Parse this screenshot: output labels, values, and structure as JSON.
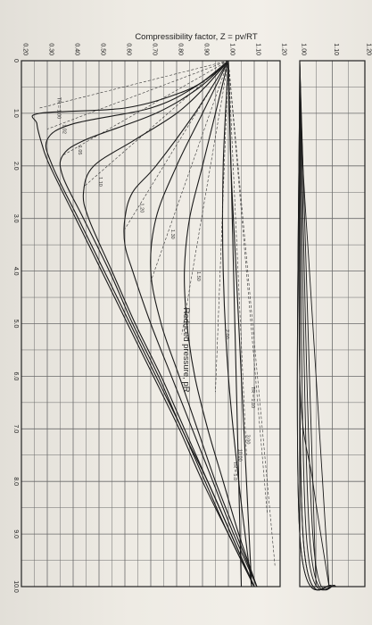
{
  "chart_data": {
    "type": "line",
    "title": "",
    "xlabel": "Reduced pressure, pR",
    "ylabel": "Compressibility factor, Z = pv/RT",
    "xlim": [
      0,
      10
    ],
    "ylim": [
      0.2,
      1.2
    ],
    "inset_ylim": [
      1.0,
      1.2
    ],
    "x_ticks": [
      "0",
      "1.0",
      "2.0",
      "3.0",
      "4.0",
      "5.0",
      "6.0",
      "7.0",
      "8.0",
      "9.0",
      "10.0"
    ],
    "y_ticks": [
      "0.20",
      "0.30",
      "0.40",
      "0.50",
      "0.60",
      "0.70",
      "0.80",
      "0.90",
      "1.00",
      "1.10",
      "1.20"
    ],
    "inset_y_ticks": [
      "1.00",
      "1.10",
      "1.20"
    ],
    "grid": true,
    "series": [
      {
        "name": "TR = 1.00",
        "x": [
          0,
          0.3,
          0.6,
          0.9,
          1.0,
          1.2,
          1.6,
          2.0,
          3.0,
          4.0,
          5.0,
          6.0,
          7.0,
          8.0,
          9.0,
          10.0
        ],
        "y": [
          1.0,
          0.93,
          0.82,
          0.6,
          0.27,
          0.26,
          0.28,
          0.31,
          0.41,
          0.51,
          0.61,
          0.71,
          0.81,
          0.9,
          1.0,
          1.1
        ]
      },
      {
        "name": "1.02",
        "x": [
          0,
          0.5,
          0.9,
          1.2,
          1.5,
          2.0,
          3.0,
          4.0,
          5.0,
          6.0,
          7.0,
          8.0,
          9.0,
          10.0
        ],
        "y": [
          1.0,
          0.87,
          0.7,
          0.4,
          0.3,
          0.32,
          0.42,
          0.52,
          0.62,
          0.72,
          0.82,
          0.91,
          1.0,
          1.1
        ]
      },
      {
        "name": "1.05",
        "x": [
          0,
          0.5,
          1.0,
          1.5,
          1.8,
          2.2,
          3.0,
          4.0,
          5.0,
          6.0,
          7.0,
          8.0,
          9.0,
          10.0
        ],
        "y": [
          1.0,
          0.89,
          0.72,
          0.45,
          0.36,
          0.36,
          0.44,
          0.54,
          0.63,
          0.73,
          0.82,
          0.92,
          1.01,
          1.1
        ]
      },
      {
        "name": "1.10",
        "x": [
          0,
          0.5,
          1.0,
          1.5,
          2.0,
          2.5,
          3.0,
          4.0,
          5.0,
          6.0,
          7.0,
          8.0,
          9.0,
          10.0
        ],
        "y": [
          1.0,
          0.91,
          0.8,
          0.64,
          0.48,
          0.44,
          0.46,
          0.55,
          0.64,
          0.74,
          0.83,
          0.92,
          1.01,
          1.1
        ]
      },
      {
        "name": "1.20",
        "x": [
          0,
          1.0,
          2.0,
          2.5,
          3.0,
          3.5,
          4.0,
          5.0,
          6.0,
          7.0,
          8.0,
          9.0,
          10.0
        ],
        "y": [
          1.0,
          0.87,
          0.72,
          0.63,
          0.6,
          0.6,
          0.63,
          0.7,
          0.78,
          0.86,
          0.94,
          1.02,
          1.11
        ]
      },
      {
        "name": "1.30",
        "x": [
          0,
          1.0,
          2.0,
          3.0,
          4.0,
          5.0,
          6.0,
          7.0,
          8.0,
          9.0,
          10.0
        ],
        "y": [
          1.0,
          0.9,
          0.8,
          0.72,
          0.7,
          0.74,
          0.81,
          0.88,
          0.95,
          1.03,
          1.11
        ]
      },
      {
        "name": "1.50",
        "x": [
          0,
          1.0,
          2.0,
          3.0,
          4.0,
          5.0,
          6.0,
          7.0,
          8.0,
          9.0,
          10.0
        ],
        "y": [
          1.0,
          0.95,
          0.9,
          0.85,
          0.83,
          0.84,
          0.87,
          0.92,
          0.98,
          1.04,
          1.11
        ]
      },
      {
        "name": "2.00",
        "x": [
          0,
          2.0,
          4.0,
          6.0,
          8.0,
          10.0
        ],
        "y": [
          1.0,
          0.98,
          0.98,
          1.0,
          1.04,
          1.09
        ]
      },
      {
        "name": "3.00",
        "x": [
          0,
          2.0,
          4.0,
          6.0,
          8.0,
          10.0
        ],
        "y": [
          1.0,
          1.01,
          1.03,
          1.05,
          1.07,
          1.09
        ]
      },
      {
        "name": "10.00",
        "x": [
          0,
          2.0,
          4.0,
          6.0,
          8.0,
          10.0
        ],
        "y": [
          1.0,
          1.01,
          1.02,
          1.03,
          1.04,
          1.05
        ]
      }
    ],
    "annotations": [
      "TR = 1.00",
      "1.02",
      "1.05",
      "1.10",
      "1.20",
      "1.30",
      "1.50",
      "2.00",
      "3.00",
      "10.00",
      "TR = 1.10",
      "TR = 5.0"
    ],
    "legend": "none"
  }
}
